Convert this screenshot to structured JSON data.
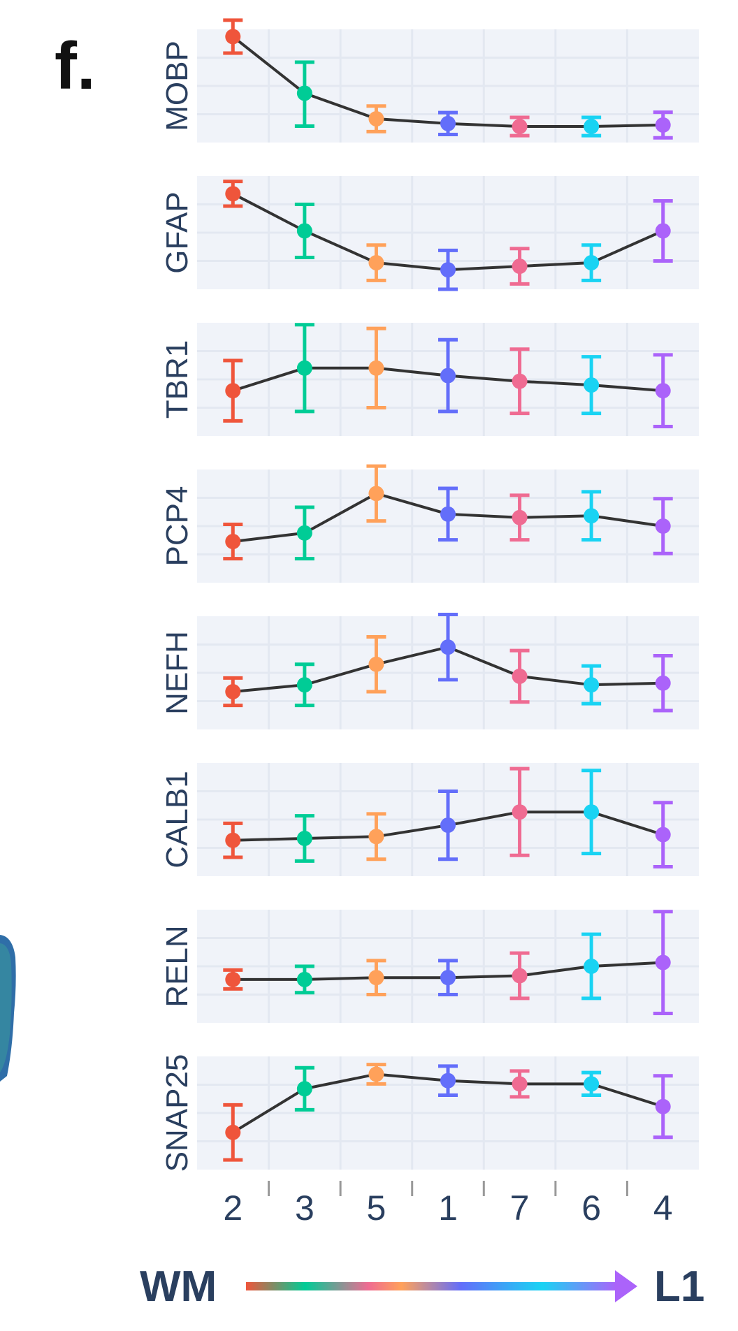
{
  "panel_label": "f.",
  "chart_data": {
    "type": "line",
    "categories": [
      "2",
      "3",
      "5",
      "1",
      "7",
      "6",
      "4"
    ],
    "colors": [
      "#ef553b",
      "#00cc96",
      "#ffa15a",
      "#636efa",
      "#ef6b92",
      "#19d3f3",
      "#ab63fa"
    ],
    "line_color": "#333333",
    "grid": true,
    "panels": [
      {
        "gene": "MOBP",
        "ylim": [
          -0.3,
          2.8
        ],
        "values": [
          2.6,
          1.05,
          0.35,
          0.22,
          0.14,
          0.14,
          0.18
        ],
        "err_low": [
          0.45,
          0.9,
          0.35,
          0.3,
          0.25,
          0.25,
          0.35
        ],
        "err_high": [
          0.45,
          0.85,
          0.35,
          0.3,
          0.25,
          0.25,
          0.35
        ]
      },
      {
        "gene": "GFAP",
        "ylim": [
          -0.5,
          2.7
        ],
        "values": [
          2.2,
          1.15,
          0.25,
          0.05,
          0.15,
          0.25,
          1.15
        ],
        "err_low": [
          0.35,
          0.75,
          0.5,
          0.55,
          0.5,
          0.5,
          0.85
        ],
        "err_high": [
          0.35,
          0.75,
          0.5,
          0.55,
          0.5,
          0.5,
          0.85
        ]
      },
      {
        "gene": "TBR1",
        "ylim": [
          -0.2,
          2.8
        ],
        "values": [
          1.0,
          1.6,
          1.6,
          1.4,
          1.25,
          1.15,
          1.0
        ],
        "err_low": [
          0.8,
          1.15,
          1.05,
          0.95,
          0.85,
          0.75,
          0.95
        ],
        "err_high": [
          0.8,
          1.15,
          1.05,
          0.95,
          0.85,
          0.75,
          0.95
        ]
      },
      {
        "gene": "PCP4",
        "ylim": [
          -0.5,
          2.8
        ],
        "values": [
          0.7,
          0.95,
          2.1,
          1.5,
          1.4,
          1.45,
          1.15
        ],
        "err_low": [
          0.5,
          0.75,
          0.8,
          0.75,
          0.65,
          0.7,
          0.8
        ],
        "err_high": [
          0.5,
          0.75,
          0.8,
          0.75,
          0.65,
          0.7,
          0.8
        ]
      },
      {
        "gene": "NEFH",
        "ylim": [
          -0.5,
          2.8
        ],
        "values": [
          0.6,
          0.8,
          1.4,
          1.9,
          1.05,
          0.8,
          0.85
        ],
        "err_low": [
          0.4,
          0.6,
          0.8,
          0.95,
          0.75,
          0.55,
          0.8
        ],
        "err_high": [
          0.4,
          0.6,
          0.8,
          0.95,
          0.75,
          0.55,
          0.8
        ]
      },
      {
        "gene": "CALB1",
        "ylim": [
          -0.4,
          2.6
        ],
        "values": [
          0.55,
          0.6,
          0.65,
          0.95,
          1.3,
          1.3,
          0.7
        ],
        "err_low": [
          0.45,
          0.6,
          0.6,
          0.9,
          1.15,
          1.1,
          0.85
        ],
        "err_high": [
          0.45,
          0.6,
          0.6,
          0.9,
          1.15,
          1.1,
          0.85
        ]
      },
      {
        "gene": "RELN",
        "ylim": [
          -0.4,
          2.6
        ],
        "values": [
          0.75,
          0.75,
          0.8,
          0.8,
          0.85,
          1.1,
          1.2
        ],
        "err_low": [
          0.25,
          0.35,
          0.45,
          0.45,
          0.6,
          0.85,
          1.35
        ],
        "err_high": [
          0.25,
          0.35,
          0.45,
          0.45,
          0.6,
          0.85,
          1.35
        ]
      },
      {
        "gene": "SNAP25",
        "ylim": [
          -0.6,
          2.9
        ],
        "values": [
          0.55,
          1.9,
          2.35,
          2.15,
          2.05,
          2.05,
          1.35
        ],
        "err_low": [
          0.85,
          0.65,
          0.3,
          0.45,
          0.4,
          0.35,
          0.95
        ],
        "err_high": [
          0.85,
          0.65,
          0.3,
          0.45,
          0.4,
          0.35,
          0.95
        ]
      }
    ]
  },
  "gradient_axis": {
    "start_label": "WM",
    "end_label": "L1"
  }
}
